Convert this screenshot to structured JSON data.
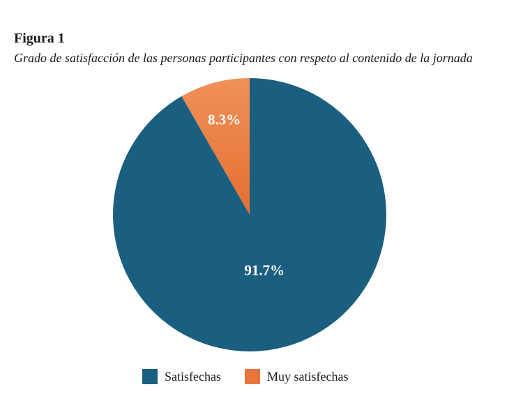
{
  "figure": {
    "label": "Figura 1",
    "title": "Grado de satisfacción de las personas participantes con respeto al contenido de la jornada"
  },
  "chart_data": {
    "type": "pie",
    "title": "Grado de satisfacción de las personas participantes con respeto al contenido de la jornada",
    "categories": [
      "Muy satisfechas",
      "Satisfechas"
    ],
    "values": [
      8.3,
      91.7
    ],
    "data_labels": [
      "8.3%",
      "91.7%"
    ],
    "colors": [
      "#e8763c",
      "#1b5f80"
    ],
    "legend_placement": "bottom",
    "grid": false
  },
  "legend": {
    "items": [
      {
        "label": "Satisfechas",
        "color": "#1b5f80"
      },
      {
        "label": "Muy satisfechas",
        "color": "#e8763c"
      }
    ]
  }
}
